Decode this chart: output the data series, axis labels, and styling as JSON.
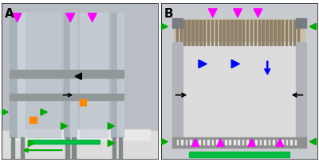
{
  "figure_width": 4.0,
  "figure_height": 2.04,
  "dpi": 100,
  "bg_color": "#ffffff",
  "border_color": "#000000",
  "arrows": {
    "magenta": "#ff00ff",
    "green": "#00aa00",
    "orange": "#ff8800",
    "black": "#000000",
    "blue": "#0000ff"
  }
}
